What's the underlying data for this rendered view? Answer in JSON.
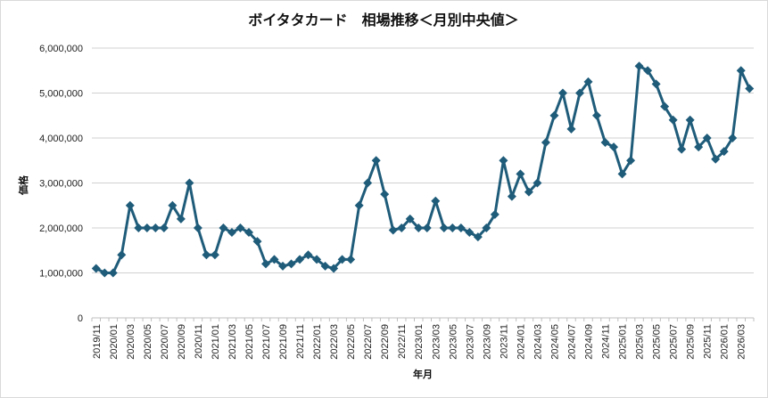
{
  "chart_data": {
    "type": "line",
    "title": "ボイタタカード　相場推移＜月別中央値＞",
    "xlabel": "年月",
    "ylabel": "価格",
    "ylim": [
      0,
      6000000
    ],
    "y_ticks": [
      "0",
      "1,000,000",
      "2,000,000",
      "3,000,000",
      "4,000,000",
      "5,000,000",
      "6,000,000"
    ],
    "x_tick_labels": [
      "2019/11",
      "2020/01",
      "2020/03",
      "2020/05",
      "2020/07",
      "2020/09",
      "2020/11",
      "2021/01",
      "2021/03",
      "2021/05",
      "2021/07",
      "2021/09",
      "2021/11",
      "2022/01",
      "2022/03",
      "2022/05",
      "2022/07",
      "2022/09",
      "2022/11",
      "2023/01",
      "2023/03",
      "2023/05",
      "2023/07",
      "2023/09",
      "2023/11",
      "2024/01",
      "2024/03",
      "2024/05",
      "2024/07",
      "2024/09",
      "2024/11",
      "2025/01",
      "2025/03",
      "2025/05",
      "2025/07",
      "2025/09",
      "2025/11",
      "2026/01",
      "2026/03"
    ],
    "grid": true,
    "line_color": "#1f5c7a",
    "marker": "diamond",
    "series": [
      {
        "values": [
          1100000,
          1000000,
          1000000,
          1400000,
          2500000,
          2000000,
          2000000,
          2000000,
          2000000,
          2500000,
          2200000,
          3000000,
          2000000,
          1400000,
          1400000,
          2000000,
          1900000,
          2000000,
          1900000,
          1700000,
          1200000,
          1300000,
          1150000,
          1200000,
          1300000,
          1400000,
          1300000,
          1150000,
          1100000,
          1300000,
          1300000,
          2500000,
          3000000,
          3500000,
          2750000,
          1950000,
          2000000,
          2200000,
          2000000,
          2000000,
          2600000,
          2000000,
          2000000,
          2000000,
          1900000,
          1800000,
          2000000,
          2300000,
          3500000,
          2700000,
          3200000,
          2800000,
          3000000,
          3900000,
          4500000,
          5000000,
          4200000,
          5000000,
          5250000,
          4500000,
          3900000,
          3800000,
          3200000,
          3500000,
          5600000,
          5500000,
          5200000,
          4700000,
          4400000,
          3750000,
          4400000,
          3800000,
          4000000,
          3530000,
          3700000,
          4000000,
          5500000,
          5100000
        ]
      }
    ]
  }
}
